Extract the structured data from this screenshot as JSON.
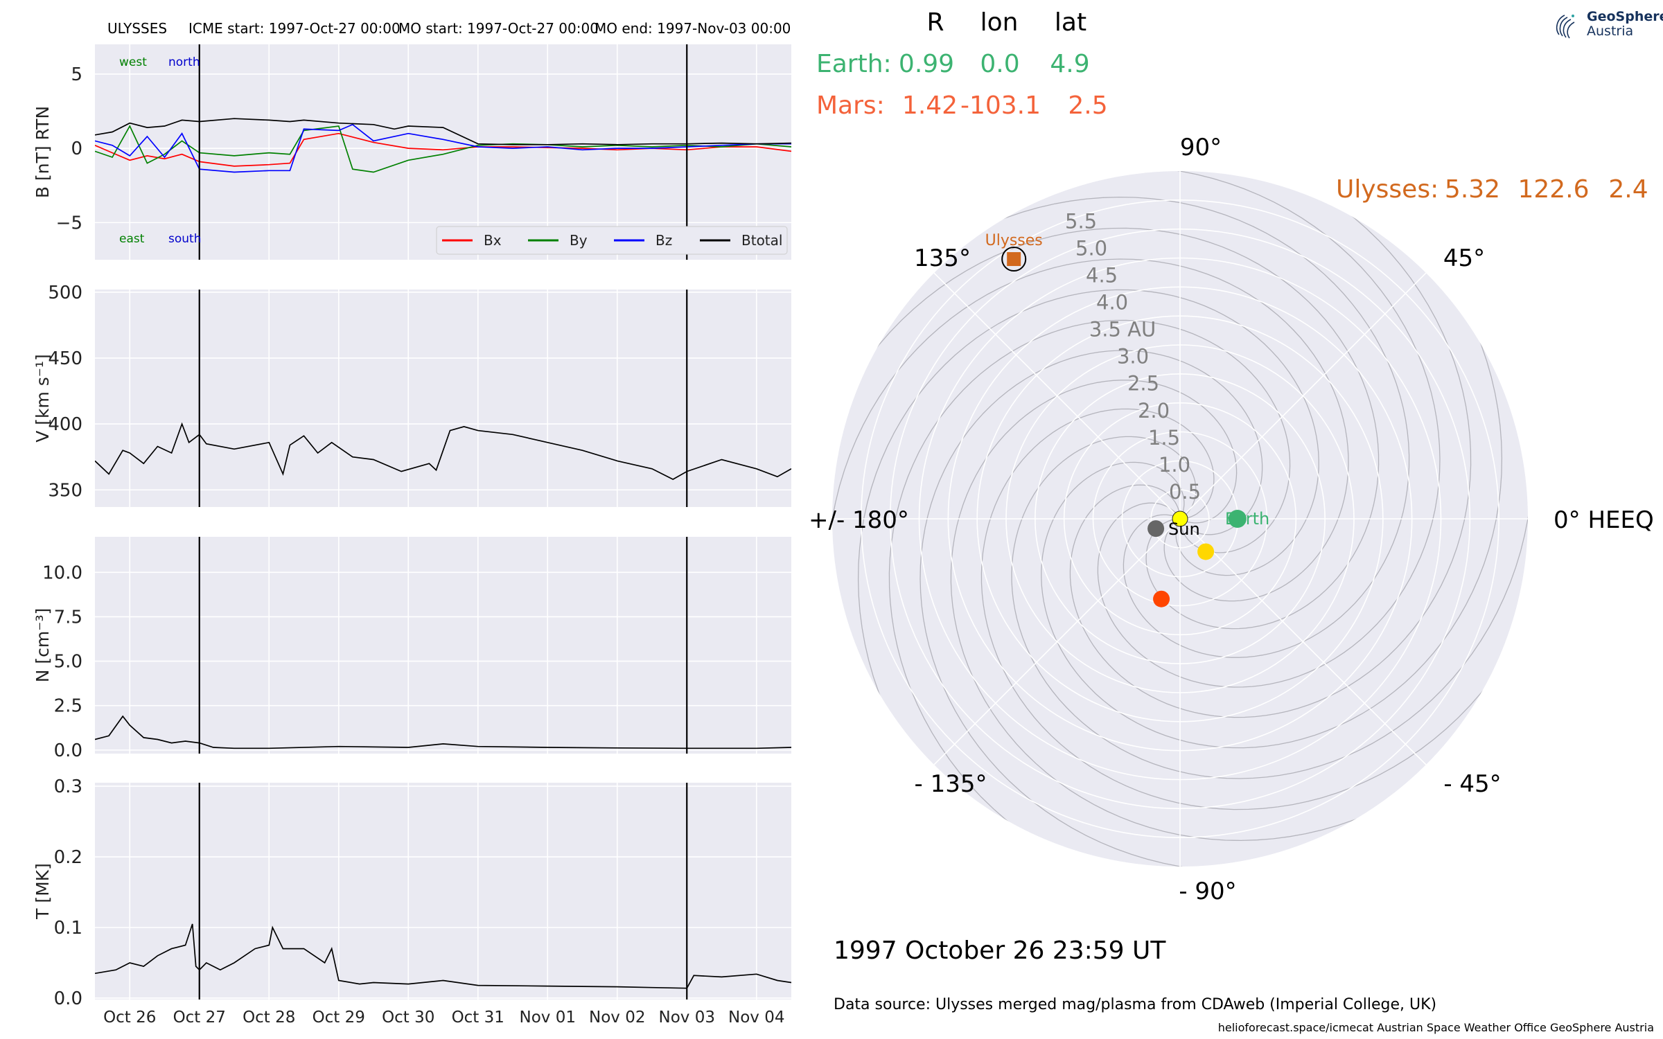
{
  "header": {
    "spacecraft": "ULYSSES",
    "icme_start": "ICME start: 1997-Oct-27 00:00",
    "mo_start": "MO start: 1997-Oct-27 00:00",
    "mo_end": "MO end: 1997-Nov-03 00:00"
  },
  "logo": {
    "line1": "GeoSphere",
    "line2": "Austria"
  },
  "positions": {
    "header": {
      "r": "R",
      "lon": "lon",
      "lat": "lat"
    },
    "earth": {
      "label": "Earth:",
      "r": "0.99",
      "lon": "0.0",
      "lat": "4.9",
      "color": "#3cb371"
    },
    "mars": {
      "label": "Mars:",
      "r": "1.42",
      "lon": "-103.1",
      "lat": "2.5",
      "color": "#f4623a"
    },
    "ulysses": {
      "label": "Ulysses:",
      "r": "5.32",
      "lon": "122.6",
      "lat": "2.4",
      "color": "#d2691e"
    }
  },
  "polar": {
    "angle_labels": {
      "a90": "90°",
      "a45": "45°",
      "a0": "0° HEEQ",
      "am45": "- 45°",
      "am90": "- 90°",
      "am135": "- 135°",
      "a180": "+/- 180°",
      "a135": "135°"
    },
    "radial_labels": [
      "0.5",
      "1.0",
      "1.5",
      "2.0",
      "2.5",
      "3.0",
      "3.5 AU",
      "4.0",
      "4.5",
      "5.0",
      "5.5"
    ],
    "rmax": 6.0,
    "sun_label": "Sun",
    "earth_label": "Earth",
    "ulysses_label": "Ulysses",
    "colors": {
      "sun": "#ffff00",
      "earth": "#3cb371",
      "mars": "#ff4500",
      "venus": "#ffd700",
      "mercury": "#666666",
      "ulysses": "#d2691e",
      "bg": "#eaeaf2"
    },
    "bodies": {
      "earth": {
        "r": 0.99,
        "lon": 0.0
      },
      "mars": {
        "r": 1.42,
        "lon": -103.1
      },
      "ulysses": {
        "r": 5.32,
        "lon": 122.6
      },
      "venus": {
        "r": 0.72,
        "lon": -52
      },
      "mercury": {
        "r": 0.45,
        "lon": -158
      }
    }
  },
  "timestamp": "1997 October 26  23:59 UT",
  "data_source": "Data source: Ulysses merged mag/plasma from CDAweb (Imperial College, UK)",
  "footer": "helioforecast.space/icmecat   Austrian Space Weather Office   GeoSphere Austria",
  "chart_data": {
    "type": "line",
    "x_tick_labels": [
      "Oct 26",
      "Oct 27",
      "Oct 28",
      "Oct 29",
      "Oct 30",
      "Oct 31",
      "Nov 01",
      "Nov 02",
      "Nov 03",
      "Nov 04"
    ],
    "x_range_days": [
      -0.5,
      9.5
    ],
    "event_lines_days": [
      1.0,
      8.0
    ],
    "panels": [
      {
        "ylabel": "B [nT] RTN",
        "ylim": [
          -7.5,
          7.0
        ],
        "yticks": [
          -5,
          0,
          5
        ],
        "tick_labels": [
          "−5",
          "0",
          "5"
        ],
        "annotations": {
          "west": "west",
          "north": "north",
          "east": "east",
          "south": "south"
        },
        "legend": [
          "Bx",
          "By",
          "Bz",
          "Btotal"
        ],
        "series": [
          {
            "name": "Bx",
            "color": "#ff0000",
            "x": [
              -0.5,
              -0.25,
              0,
              0.25,
              0.5,
              0.75,
              1,
              1.5,
              2,
              2.3,
              2.5,
              3,
              3.5,
              4,
              4.5,
              5,
              5.5,
              6,
              6.5,
              7,
              7.5,
              8,
              8.5,
              9,
              9.5
            ],
            "y": [
              0.2,
              -0.3,
              -0.8,
              -0.5,
              -0.7,
              -0.4,
              -0.9,
              -1.2,
              -1.1,
              -1.0,
              0.6,
              1.0,
              0.4,
              0,
              -0.1,
              0.1,
              0.1,
              0.05,
              0,
              -0.1,
              0,
              -0.1,
              0.1,
              0.1,
              -0.2
            ]
          },
          {
            "name": "By",
            "color": "#008000",
            "x": [
              -0.5,
              -0.25,
              0,
              0.25,
              0.5,
              0.75,
              1,
              1.5,
              2,
              2.3,
              2.5,
              3,
              3.2,
              3.5,
              4,
              4.5,
              5,
              5.5,
              6,
              6.5,
              7,
              7.5,
              8,
              8.5,
              9,
              9.5
            ],
            "y": [
              -0.2,
              -0.6,
              1.5,
              -1.0,
              -0.4,
              0.5,
              -0.3,
              -0.5,
              -0.3,
              -0.4,
              1.2,
              1.5,
              -1.4,
              -1.6,
              -0.8,
              -0.4,
              0.2,
              0.3,
              0.25,
              0.1,
              0.2,
              0.1,
              0.2,
              0.1,
              0.3,
              0.1
            ]
          },
          {
            "name": "Bz",
            "color": "#0000ff",
            "x": [
              -0.5,
              -0.25,
              0,
              0.25,
              0.5,
              0.75,
              1,
              1.5,
              2,
              2.3,
              2.5,
              3,
              3.2,
              3.5,
              4,
              4.5,
              5,
              5.5,
              6,
              6.5,
              7,
              7.5,
              8,
              8.5,
              9,
              9.5
            ],
            "y": [
              0.5,
              0.2,
              -0.5,
              0.8,
              -0.6,
              1.0,
              -1.4,
              -1.6,
              -1.5,
              -1.5,
              1.3,
              1.2,
              1.6,
              0.5,
              1.0,
              0.6,
              0.1,
              0.0,
              0.1,
              -0.1,
              0.0,
              0.0,
              0.1,
              0.2,
              0.3,
              0.3
            ]
          },
          {
            "name": "Btotal",
            "color": "#000000",
            "x": [
              -0.5,
              -0.25,
              0,
              0.25,
              0.5,
              0.75,
              1,
              1.5,
              2,
              2.3,
              2.5,
              3,
              3.5,
              3.8,
              4,
              4.5,
              5,
              5.5,
              6,
              6.5,
              7,
              7.5,
              8,
              8.5,
              9,
              9.5
            ],
            "y": [
              0.9,
              1.1,
              1.7,
              1.4,
              1.5,
              1.9,
              1.8,
              2.0,
              1.9,
              1.8,
              1.9,
              1.7,
              1.6,
              1.3,
              1.5,
              1.4,
              0.3,
              0.25,
              0.25,
              0.3,
              0.25,
              0.3,
              0.3,
              0.35,
              0.3,
              0.35
            ]
          }
        ]
      },
      {
        "ylabel": "V [km s⁻¹]",
        "ylim": [
          337,
          502
        ],
        "yticks": [
          350,
          400,
          450,
          500
        ],
        "tick_labels": [
          "350",
          "400",
          "450",
          "500"
        ],
        "series": [
          {
            "name": "V",
            "color": "#000000",
            "x": [
              -0.5,
              -0.3,
              -0.1,
              0,
              0.2,
              0.4,
              0.6,
              0.75,
              0.85,
              1.0,
              1.1,
              1.5,
              2.0,
              2.2,
              2.3,
              2.5,
              2.7,
              2.9,
              3.2,
              3.5,
              3.9,
              4.3,
              4.4,
              4.6,
              4.8,
              5.0,
              5.5,
              6.0,
              6.5,
              7.0,
              7.5,
              7.8,
              8.0,
              8.5,
              9.0,
              9.3,
              9.5
            ],
            "y": [
              372,
              362,
              380,
              378,
              370,
              383,
              378,
              400,
              386,
              392,
              385,
              381,
              386,
              362,
              384,
              391,
              378,
              386,
              375,
              373,
              364,
              370,
              365,
              395,
              398,
              395,
              392,
              386,
              380,
              372,
              366,
              358,
              364,
              373,
              366,
              360,
              366
            ]
          }
        ]
      },
      {
        "ylabel": "N [cm⁻³]",
        "ylim": [
          -0.2,
          12.0
        ],
        "yticks": [
          0.0,
          2.5,
          5.0,
          7.5,
          10.0
        ],
        "tick_labels": [
          "0.0",
          "2.5",
          "5.0",
          "7.5",
          "10.0"
        ],
        "series": [
          {
            "name": "N",
            "color": "#000000",
            "x": [
              -0.5,
              -0.3,
              -0.1,
              0,
              0.2,
              0.4,
              0.6,
              0.8,
              1.0,
              1.2,
              1.5,
              2.0,
              3.0,
              4.0,
              4.5,
              5.0,
              6.0,
              7.0,
              8.0,
              9.0,
              9.5
            ],
            "y": [
              0.6,
              0.8,
              1.9,
              1.4,
              0.7,
              0.6,
              0.4,
              0.5,
              0.4,
              0.15,
              0.1,
              0.1,
              0.2,
              0.15,
              0.35,
              0.2,
              0.15,
              0.12,
              0.1,
              0.1,
              0.15
            ]
          }
        ]
      },
      {
        "ylabel": "T [MK]",
        "ylim": [
          -0.002,
          0.305
        ],
        "yticks": [
          0.0,
          0.1,
          0.2,
          0.3
        ],
        "tick_labels": [
          "0.0",
          "0.1",
          "0.2",
          "0.3"
        ],
        "series": [
          {
            "name": "T",
            "color": "#000000",
            "x": [
              -0.5,
              -0.2,
              0,
              0.2,
              0.4,
              0.6,
              0.8,
              0.9,
              0.95,
              1.0,
              1.1,
              1.3,
              1.5,
              1.8,
              2.0,
              2.05,
              2.2,
              2.5,
              2.8,
              2.9,
              3.0,
              3.3,
              3.5,
              4.0,
              4.5,
              5.0,
              6.0,
              7.0,
              7.5,
              8.0,
              8.1,
              8.5,
              9.0,
              9.3,
              9.5
            ],
            "y": [
              0.035,
              0.04,
              0.05,
              0.045,
              0.06,
              0.07,
              0.075,
              0.105,
              0.045,
              0.04,
              0.05,
              0.04,
              0.05,
              0.07,
              0.075,
              0.1,
              0.07,
              0.07,
              0.05,
              0.07,
              0.025,
              0.02,
              0.022,
              0.02,
              0.025,
              0.018,
              0.017,
              0.016,
              0.015,
              0.014,
              0.032,
              0.03,
              0.034,
              0.025,
              0.022
            ]
          }
        ]
      }
    ]
  }
}
